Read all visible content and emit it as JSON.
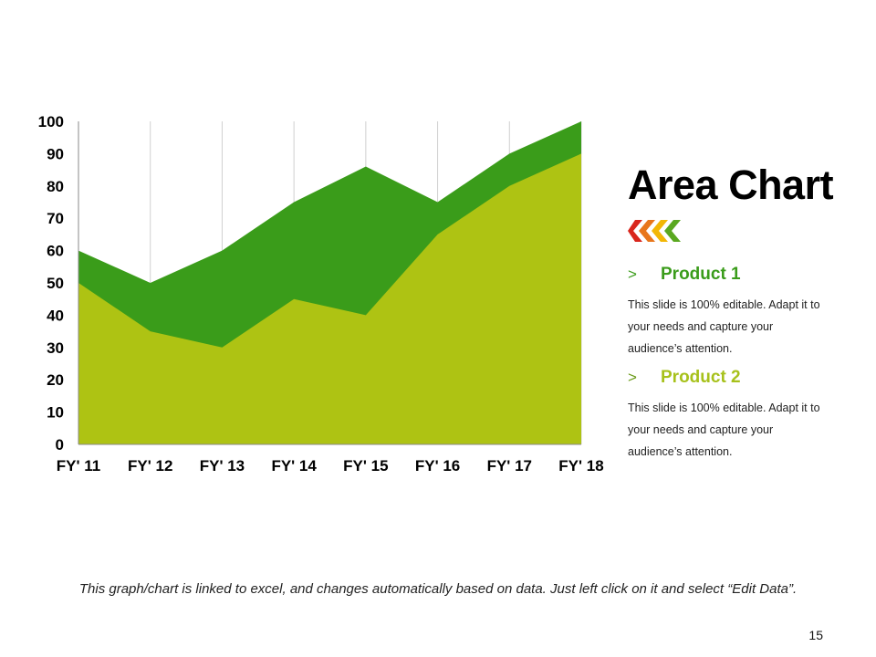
{
  "slide": {
    "title": "Area Chart",
    "footer": "This graph/chart is linked to excel, and changes automatically based on data. Just left click on it and select “Edit Data”.",
    "page_number": "15",
    "products": [
      {
        "marker": ">",
        "name": "Product 1",
        "description": "This slide is 100% editable. Adapt it to your needs and capture your audience’s attention."
      },
      {
        "marker": ">",
        "name": "Product 2",
        "description": "This slide is 100% editable. Adapt it to your needs and capture your audience’s attention."
      }
    ],
    "colors": {
      "product1": "#3a9c1a",
      "product2": "#aec313",
      "grid": "#d0d0d0",
      "axis": "#8a8a8a",
      "chevron_red": "#d9261c",
      "chevron_yellow": "#f2b705",
      "chevron_green": "#5aa820"
    }
  },
  "chart_data": {
    "type": "area",
    "categories": [
      "FY' 11",
      "FY' 12",
      "FY' 13",
      "FY' 14",
      "FY' 15",
      "FY' 16",
      "FY' 17",
      "FY' 18"
    ],
    "series": [
      {
        "name": "Product 1",
        "values": [
          60,
          50,
          60,
          75,
          86,
          75,
          90,
          100
        ]
      },
      {
        "name": "Product 2",
        "values": [
          50,
          35,
          30,
          45,
          40,
          65,
          80,
          90
        ]
      }
    ],
    "ylim": [
      0,
      100
    ],
    "yticks": [
      0,
      10,
      20,
      30,
      40,
      50,
      60,
      70,
      80,
      90,
      100
    ],
    "grid": "vertical",
    "legend": "none",
    "title": "",
    "xlabel": "",
    "ylabel": ""
  }
}
